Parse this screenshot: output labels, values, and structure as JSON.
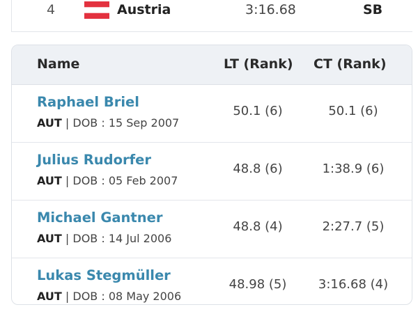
{
  "top_row": {
    "rank": "4",
    "country": "Austria",
    "time": "3:16.68",
    "tag": "SB"
  },
  "table": {
    "headers": [
      "Name",
      "LT (Rank)",
      "CT (Rank)"
    ],
    "rows": [
      {
        "name": "Raphael Briel",
        "nation": "AUT",
        "dob": "| DOB : 15 Sep 2007",
        "lt": "50.1 (6)",
        "ct": "50.1 (6)"
      },
      {
        "name": "Julius Rudorfer",
        "nation": "AUT",
        "dob": "| DOB : 05 Feb 2007",
        "lt": "48.8 (6)",
        "ct": "1:38.9 (6)"
      },
      {
        "name": "Michael Gantner",
        "nation": "AUT",
        "dob": "| DOB : 14 Jul 2006",
        "lt": "48.8 (4)",
        "ct": "2:27.7 (5)"
      },
      {
        "name": "Lukas Stegmüller",
        "nation": "AUT",
        "dob": "| DOB : 08 May 2006",
        "lt": "48.98 (5)",
        "ct": "3:16.68 (4)"
      }
    ]
  }
}
